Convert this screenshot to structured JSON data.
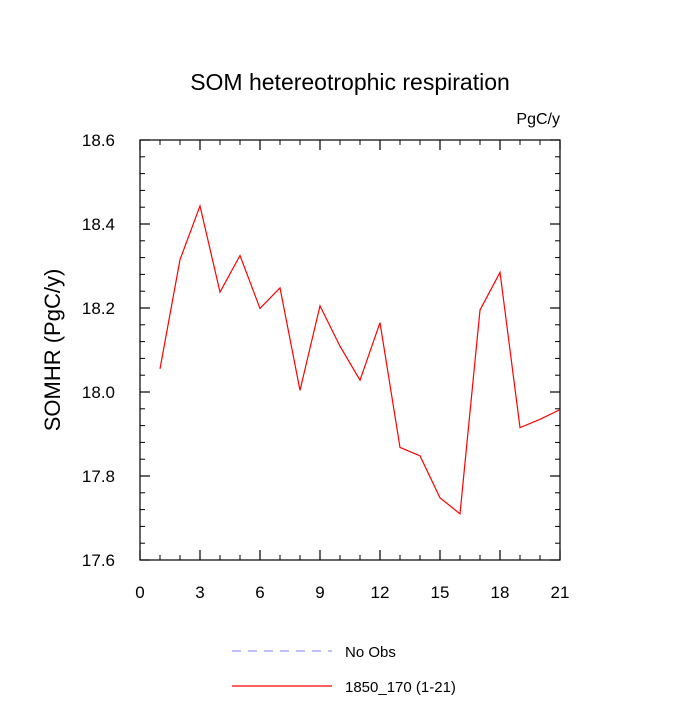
{
  "chart_data": {
    "type": "line",
    "title": "SOM hetereotrophic respiration",
    "units_label": "PgC/y",
    "ylabel": "SOMHR  (PgC/y)",
    "xlabel": "",
    "xlim": [
      0,
      21
    ],
    "ylim": [
      17.6,
      18.6
    ],
    "x_major_ticks": [
      0,
      3,
      6,
      9,
      12,
      15,
      18,
      21
    ],
    "x_minor_ticks": [
      1,
      2,
      4,
      5,
      7,
      8,
      10,
      11,
      13,
      14,
      16,
      17,
      19,
      20
    ],
    "y_major_ticks": [
      17.6,
      17.8,
      18.0,
      18.2,
      18.4,
      18.6
    ],
    "y_tick_labels": [
      "17.6",
      "17.8",
      "18.0",
      "18.2",
      "18.4",
      "18.6"
    ],
    "x_tick_labels": [
      "0",
      "3",
      "6",
      "9",
      "12",
      "15",
      "18",
      "21"
    ],
    "grid": false,
    "legend_position": "bottom-center",
    "series": [
      {
        "name": "No Obs",
        "color": "#9999ff",
        "style": "dashed",
        "x": [],
        "y": []
      },
      {
        "name": "1850_170 (1-21)",
        "color": "#ff0000",
        "style": "solid",
        "x": [
          1,
          2,
          3,
          4,
          5,
          6,
          7,
          8,
          9,
          10,
          11,
          12,
          13,
          14,
          15,
          16,
          17,
          18,
          19,
          20,
          21
        ],
        "y": [
          18.055,
          18.315,
          18.443,
          18.238,
          18.325,
          18.199,
          18.248,
          18.004,
          18.205,
          18.109,
          18.028,
          18.165,
          17.868,
          17.848,
          17.748,
          17.71,
          18.195,
          18.285,
          17.915,
          17.935,
          17.958
        ]
      }
    ]
  }
}
